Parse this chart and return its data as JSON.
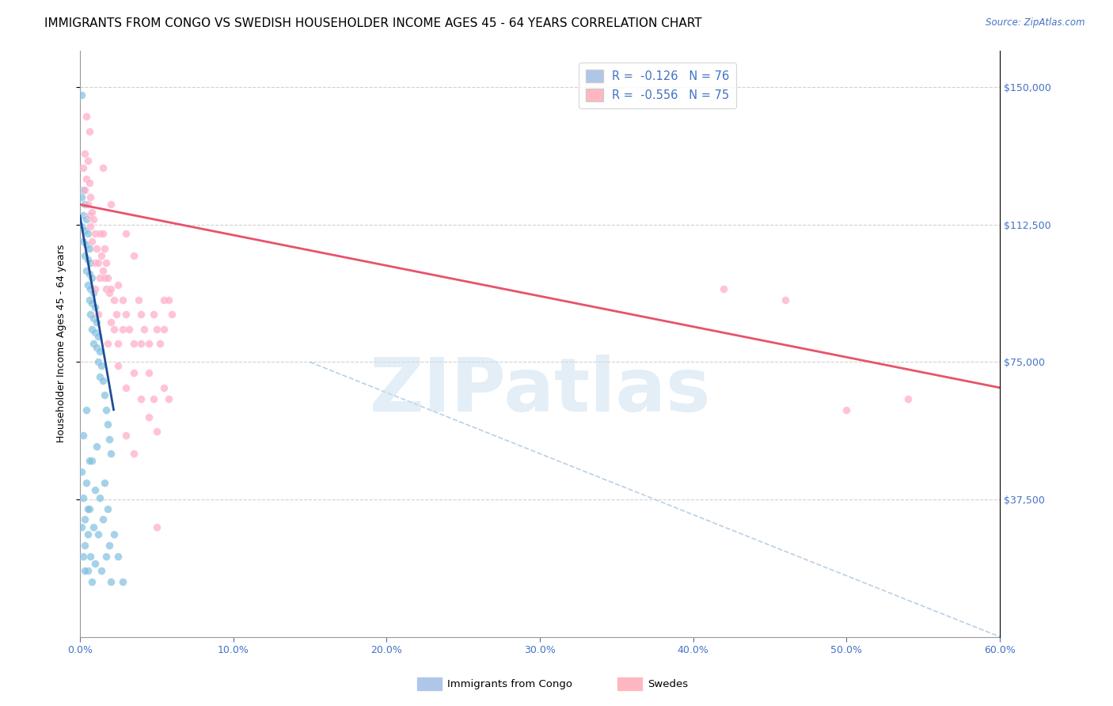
{
  "title": "IMMIGRANTS FROM CONGO VS SWEDISH HOUSEHOLDER INCOME AGES 45 - 64 YEARS CORRELATION CHART",
  "source": "Source: ZipAtlas.com",
  "ylabel": "Householder Income Ages 45 - 64 years",
  "xlabel_ticks": [
    "0.0%",
    "10.0%",
    "20.0%",
    "30.0%",
    "40.0%",
    "50.0%",
    "60.0%"
  ],
  "ytick_labels": [
    "$37,500",
    "$75,000",
    "$112,500",
    "$150,000"
  ],
  "ytick_values": [
    37500,
    75000,
    112500,
    150000
  ],
  "xlim": [
    0.0,
    0.6
  ],
  "ylim": [
    0,
    160000
  ],
  "legend_label1": "Immigrants from Congo",
  "legend_label2": "Swedes",
  "congo_color": "#7fbfdf",
  "swedes_color": "#ffaec9",
  "congo_line_color": "#1f4e96",
  "swedes_line_color": "#e8536a",
  "dashed_line_color": "#a8c4e0",
  "background_color": "#ffffff",
  "grid_color": "#cccccc",
  "right_tick_color": "#4472c4",
  "congo_scatter": [
    [
      0.001,
      120000
    ],
    [
      0.001,
      112000
    ],
    [
      0.002,
      122000
    ],
    [
      0.002,
      115000
    ],
    [
      0.002,
      108000
    ],
    [
      0.003,
      118000
    ],
    [
      0.003,
      111000
    ],
    [
      0.003,
      104000
    ],
    [
      0.004,
      114000
    ],
    [
      0.004,
      107000
    ],
    [
      0.004,
      100000
    ],
    [
      0.005,
      110000
    ],
    [
      0.005,
      103000
    ],
    [
      0.005,
      96000
    ],
    [
      0.006,
      106000
    ],
    [
      0.006,
      99000
    ],
    [
      0.006,
      92000
    ],
    [
      0.007,
      102000
    ],
    [
      0.007,
      95000
    ],
    [
      0.007,
      88000
    ],
    [
      0.008,
      98000
    ],
    [
      0.008,
      91000
    ],
    [
      0.008,
      84000
    ],
    [
      0.009,
      94000
    ],
    [
      0.009,
      87000
    ],
    [
      0.009,
      80000
    ],
    [
      0.01,
      90000
    ],
    [
      0.01,
      83000
    ],
    [
      0.011,
      86000
    ],
    [
      0.011,
      79000
    ],
    [
      0.012,
      82000
    ],
    [
      0.012,
      75000
    ],
    [
      0.013,
      78000
    ],
    [
      0.013,
      71000
    ],
    [
      0.014,
      74000
    ],
    [
      0.015,
      70000
    ],
    [
      0.016,
      66000
    ],
    [
      0.017,
      62000
    ],
    [
      0.018,
      58000
    ],
    [
      0.019,
      54000
    ],
    [
      0.02,
      50000
    ],
    [
      0.001,
      148000
    ],
    [
      0.001,
      45000
    ],
    [
      0.002,
      55000
    ],
    [
      0.002,
      38000
    ],
    [
      0.003,
      32000
    ],
    [
      0.003,
      25000
    ],
    [
      0.004,
      42000
    ],
    [
      0.005,
      28000
    ],
    [
      0.005,
      18000
    ],
    [
      0.006,
      35000
    ],
    [
      0.007,
      22000
    ],
    [
      0.008,
      48000
    ],
    [
      0.008,
      15000
    ],
    [
      0.009,
      30000
    ],
    [
      0.01,
      40000
    ],
    [
      0.01,
      20000
    ],
    [
      0.011,
      52000
    ],
    [
      0.012,
      28000
    ],
    [
      0.013,
      38000
    ],
    [
      0.014,
      18000
    ],
    [
      0.015,
      32000
    ],
    [
      0.016,
      42000
    ],
    [
      0.017,
      22000
    ],
    [
      0.018,
      35000
    ],
    [
      0.019,
      25000
    ],
    [
      0.02,
      15000
    ],
    [
      0.022,
      28000
    ],
    [
      0.025,
      22000
    ],
    [
      0.028,
      15000
    ],
    [
      0.001,
      30000
    ],
    [
      0.002,
      22000
    ],
    [
      0.003,
      18000
    ],
    [
      0.004,
      62000
    ],
    [
      0.005,
      35000
    ],
    [
      0.006,
      48000
    ]
  ],
  "swedes_scatter": [
    [
      0.002,
      128000
    ],
    [
      0.003,
      132000
    ],
    [
      0.003,
      122000
    ],
    [
      0.004,
      125000
    ],
    [
      0.005,
      130000
    ],
    [
      0.005,
      118000
    ],
    [
      0.006,
      124000
    ],
    [
      0.006,
      115000
    ],
    [
      0.007,
      120000
    ],
    [
      0.007,
      112000
    ],
    [
      0.008,
      116000
    ],
    [
      0.008,
      108000
    ],
    [
      0.009,
      114000
    ],
    [
      0.01,
      110000
    ],
    [
      0.01,
      102000
    ],
    [
      0.011,
      106000
    ],
    [
      0.012,
      102000
    ],
    [
      0.013,
      98000
    ],
    [
      0.013,
      110000
    ],
    [
      0.014,
      104000
    ],
    [
      0.015,
      100000
    ],
    [
      0.015,
      110000
    ],
    [
      0.016,
      106000
    ],
    [
      0.016,
      98000
    ],
    [
      0.017,
      102000
    ],
    [
      0.017,
      95000
    ],
    [
      0.018,
      98000
    ],
    [
      0.019,
      94000
    ],
    [
      0.02,
      95000
    ],
    [
      0.02,
      86000
    ],
    [
      0.022,
      92000
    ],
    [
      0.022,
      84000
    ],
    [
      0.024,
      88000
    ],
    [
      0.025,
      96000
    ],
    [
      0.025,
      80000
    ],
    [
      0.028,
      92000
    ],
    [
      0.028,
      84000
    ],
    [
      0.03,
      88000
    ],
    [
      0.032,
      84000
    ],
    [
      0.035,
      80000
    ],
    [
      0.038,
      92000
    ],
    [
      0.04,
      88000
    ],
    [
      0.042,
      84000
    ],
    [
      0.045,
      80000
    ],
    [
      0.048,
      88000
    ],
    [
      0.05,
      84000
    ],
    [
      0.052,
      80000
    ],
    [
      0.055,
      92000
    ],
    [
      0.055,
      84000
    ],
    [
      0.058,
      92000
    ],
    [
      0.06,
      88000
    ],
    [
      0.004,
      142000
    ],
    [
      0.006,
      138000
    ],
    [
      0.015,
      128000
    ],
    [
      0.02,
      118000
    ],
    [
      0.03,
      110000
    ],
    [
      0.035,
      104000
    ],
    [
      0.01,
      95000
    ],
    [
      0.012,
      88000
    ],
    [
      0.018,
      80000
    ],
    [
      0.025,
      74000
    ],
    [
      0.03,
      68000
    ],
    [
      0.035,
      72000
    ],
    [
      0.04,
      65000
    ],
    [
      0.04,
      80000
    ],
    [
      0.045,
      60000
    ],
    [
      0.05,
      56000
    ],
    [
      0.045,
      72000
    ],
    [
      0.048,
      65000
    ],
    [
      0.055,
      68000
    ],
    [
      0.058,
      65000
    ],
    [
      0.42,
      95000
    ],
    [
      0.46,
      92000
    ],
    [
      0.5,
      62000
    ],
    [
      0.54,
      65000
    ],
    [
      0.03,
      55000
    ],
    [
      0.05,
      30000
    ],
    [
      0.035,
      50000
    ]
  ],
  "congo_line_x": [
    0.0,
    0.022
  ],
  "congo_line_y": [
    115000,
    62000
  ],
  "swedes_line_x": [
    0.0,
    0.6
  ],
  "swedes_line_y": [
    118000,
    68000
  ],
  "dashed_line_x": [
    0.15,
    0.6
  ],
  "dashed_line_y": [
    75000,
    0
  ],
  "watermark_text": "ZIPatlas",
  "title_fontsize": 11,
  "axis_label_fontsize": 9,
  "tick_fontsize": 9,
  "marker_size": 50
}
